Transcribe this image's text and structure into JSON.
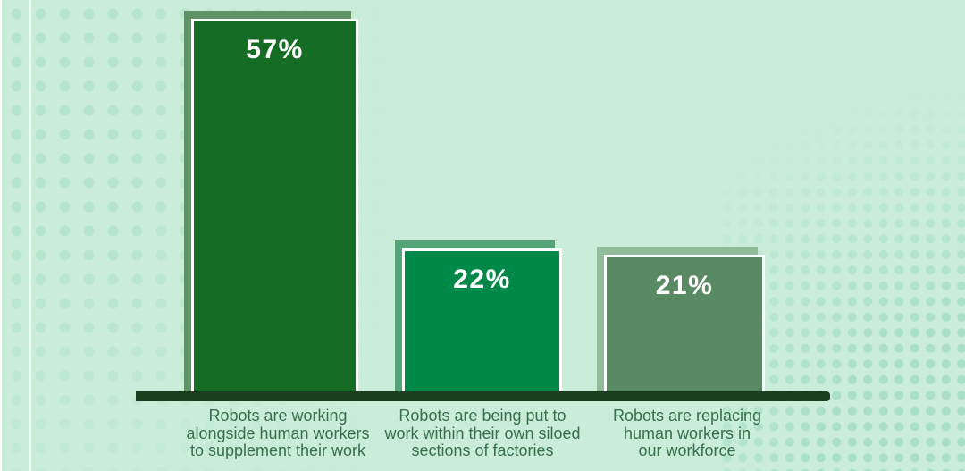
{
  "chart_data": {
    "type": "bar",
    "unit": "percent",
    "values": [
      57,
      22,
      21
    ],
    "value_labels": [
      "57%",
      "22%",
      "21%"
    ],
    "categories": [
      "Robots are working alongside human workers to supplement their work",
      "Robots are being put to work within their own siloed sections of factories",
      "Robots are replacing human workers in our workforce"
    ],
    "category_lines": [
      [
        "Robots are working",
        "alongside human workers",
        "to supplement their work"
      ],
      [
        "Robots are being put to",
        "work within their own siloed",
        "sections of factories"
      ],
      [
        "Robots are replacing",
        "human workers in",
        "our workforce"
      ]
    ],
    "layout": {
      "legend": false,
      "grid": false,
      "axes_labeled": false,
      "value_label_position": "inside-top",
      "category_label_position": "below-axis",
      "background_style": "halftone-dots"
    },
    "palette": {
      "background": "#c9edd9",
      "halftone_dots_left": "#b4e4cb",
      "halftone_dots_right": "#a9e0c5",
      "axis_line": "#1c3e20",
      "category_text": "#37704a",
      "value_text": "#ffffff",
      "bar_fills": [
        "#156c25",
        "#008849",
        "#598a63"
      ],
      "bar_shadows": [
        "#5f9366",
        "#55a478",
        "#91bc9c"
      ]
    }
  }
}
